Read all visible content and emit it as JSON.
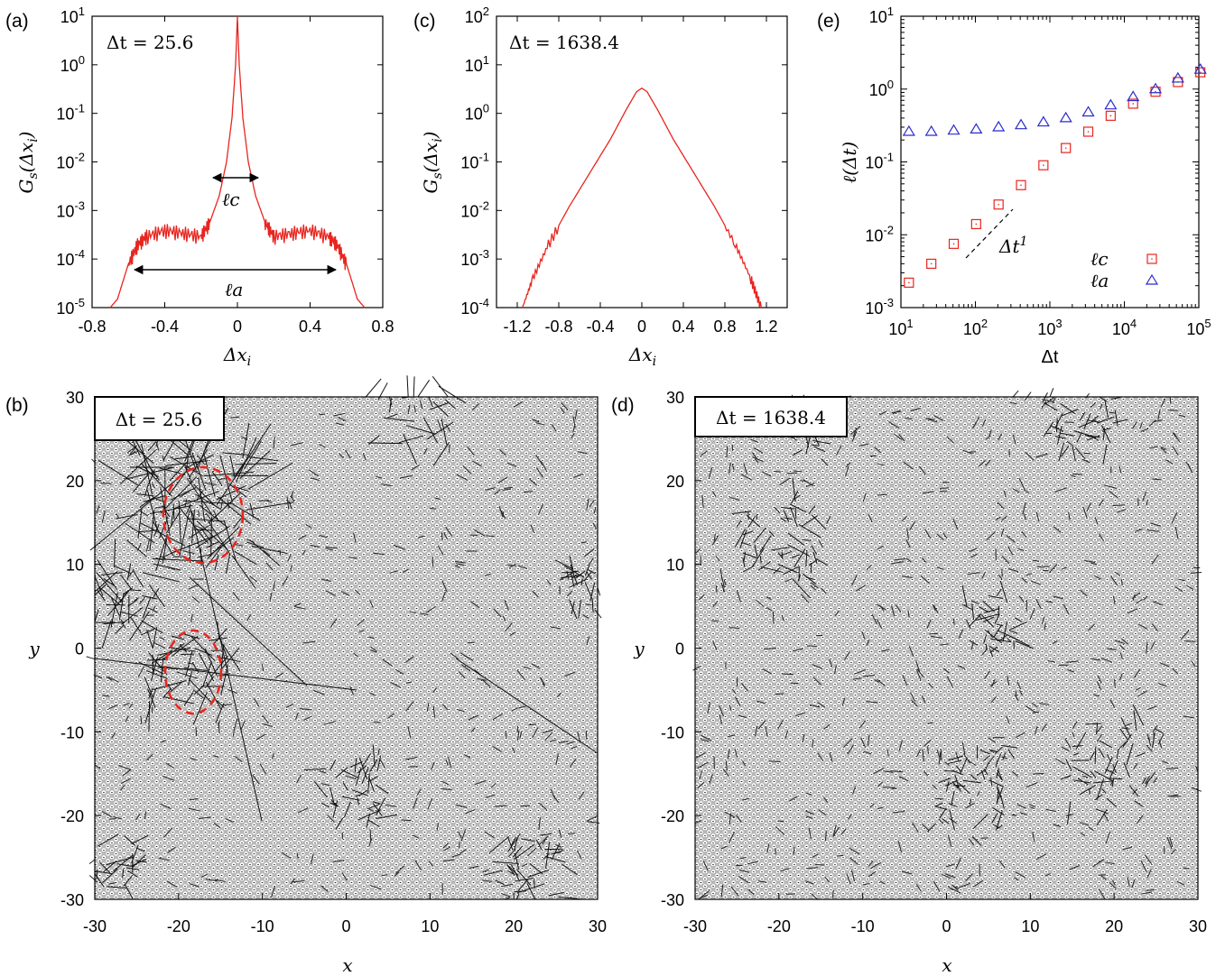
{
  "chart_data": [
    {
      "panel": "(a)",
      "type": "line",
      "annotation": "Δt = 25.6",
      "xlabel": "Δx_i",
      "ylabel": "G_s(Δx_i)",
      "xlim": [
        -0.8,
        0.8
      ],
      "ylim": [
        1e-05,
        10
      ],
      "yscale": "log",
      "xticks": [
        "-0.8",
        "-0.4",
        "0",
        "0.4",
        "0.8"
      ],
      "yticks": [
        "10-5",
        "10-4",
        "10-3",
        "10-2",
        "10-1",
        "100",
        "101"
      ],
      "series_color": "#e8251f",
      "x": [
        -0.7,
        -0.66,
        -0.6,
        -0.55,
        -0.5,
        -0.4,
        -0.3,
        -0.2,
        -0.15,
        -0.1,
        -0.06,
        -0.03,
        -0.01,
        0,
        0.01,
        0.03,
        0.06,
        0.1,
        0.15,
        0.2,
        0.3,
        0.4,
        0.5,
        0.55,
        0.6,
        0.66,
        0.7
      ],
      "y": [
        1e-05,
        1.5e-05,
        8e-05,
        0.0002,
        0.0003,
        0.0004,
        0.00035,
        0.0003,
        0.0006,
        0.002,
        0.01,
        0.08,
        1.0,
        10,
        1.0,
        0.08,
        0.01,
        0.002,
        0.0006,
        0.0003,
        0.00035,
        0.0004,
        0.0003,
        0.0002,
        8e-05,
        1.5e-05,
        1e-05
      ],
      "markers": {
        "l_c": "ℓc",
        "l_a": "ℓa"
      }
    },
    {
      "panel": "(c)",
      "type": "line",
      "annotation": "Δt = 1638.4",
      "xlabel": "Δx_i",
      "ylabel": "G_s(Δx_i)",
      "xlim": [
        -1.4,
        1.4
      ],
      "ylim": [
        0.0001,
        100
      ],
      "yscale": "log",
      "xticks": [
        "-1.2",
        "-0.8",
        "-0.4",
        "0",
        "0.4",
        "0.8",
        "1.2"
      ],
      "yticks": [
        "10-4",
        "10-3",
        "10-2",
        "10-1",
        "100",
        "101",
        "102"
      ],
      "series_color": "#e8251f",
      "x": [
        -1.15,
        -1.05,
        -0.9,
        -0.7,
        -0.5,
        -0.3,
        -0.15,
        -0.05,
        0,
        0.05,
        0.15,
        0.3,
        0.5,
        0.7,
        0.9,
        1.05,
        1.15
      ],
      "y": [
        0.0001,
        0.0004,
        0.002,
        0.012,
        0.06,
        0.3,
        1.2,
        2.8,
        3.3,
        2.8,
        1.2,
        0.3,
        0.06,
        0.012,
        0.002,
        0.0004,
        0.0001
      ]
    },
    {
      "panel": "(e)",
      "type": "scatter",
      "xlabel": "Δt",
      "ylabel": "ℓ(Δt)",
      "xscale": "log",
      "yscale": "log",
      "xlim": [
        10,
        100000
      ],
      "ylim": [
        0.001,
        10
      ],
      "xticks": [
        "101",
        "102",
        "103",
        "104",
        "105"
      ],
      "yticks": [
        "10-3",
        "10-2",
        "10-1",
        "100",
        "101"
      ],
      "slope_label": "Δt1",
      "series": [
        {
          "name": "ℓc",
          "marker": "square",
          "color": "#e8251f",
          "x": [
            12.8,
            25.6,
            51.2,
            102.4,
            204.8,
            409.6,
            819.2,
            1638.4,
            3276.8,
            6553.6,
            13107.2,
            26214.4,
            52428.8,
            104857.6
          ],
          "y": [
            0.0022,
            0.004,
            0.0075,
            0.014,
            0.026,
            0.048,
            0.09,
            0.155,
            0.26,
            0.43,
            0.63,
            0.92,
            1.25,
            1.7
          ]
        },
        {
          "name": "ℓa",
          "marker": "triangle",
          "color": "#2a2acc",
          "x": [
            12.8,
            25.6,
            51.2,
            102.4,
            204.8,
            409.6,
            819.2,
            1638.4,
            3276.8,
            6553.6,
            13107.2,
            26214.4,
            52428.8,
            104857.6
          ],
          "y": [
            0.26,
            0.26,
            0.27,
            0.28,
            0.3,
            0.32,
            0.35,
            0.4,
            0.48,
            0.6,
            0.78,
            1.0,
            1.4,
            1.85
          ]
        }
      ]
    },
    {
      "panel": "(b)",
      "type": "scatter",
      "annotation": "Δt = 25.6",
      "xlabel": "x",
      "ylabel": "y",
      "xlim": [
        -30,
        30
      ],
      "ylim": [
        -30,
        30
      ],
      "xticks": [
        "-30",
        "-20",
        "-10",
        "0",
        "10",
        "20",
        "30"
      ],
      "yticks": [
        "-30",
        "-20",
        "-10",
        "0",
        "10",
        "20",
        "30"
      ],
      "highlight_color": "#e8251f"
    },
    {
      "panel": "(d)",
      "type": "scatter",
      "annotation": "Δt = 1638.4",
      "xlabel": "x",
      "ylabel": "y",
      "xlim": [
        -30,
        30
      ],
      "ylim": [
        -30,
        30
      ],
      "xticks": [
        "-30",
        "-20",
        "-10",
        "0",
        "10",
        "20",
        "30"
      ],
      "yticks": [
        "-30",
        "-20",
        "-10",
        "0",
        "10",
        "20",
        "30"
      ]
    }
  ]
}
